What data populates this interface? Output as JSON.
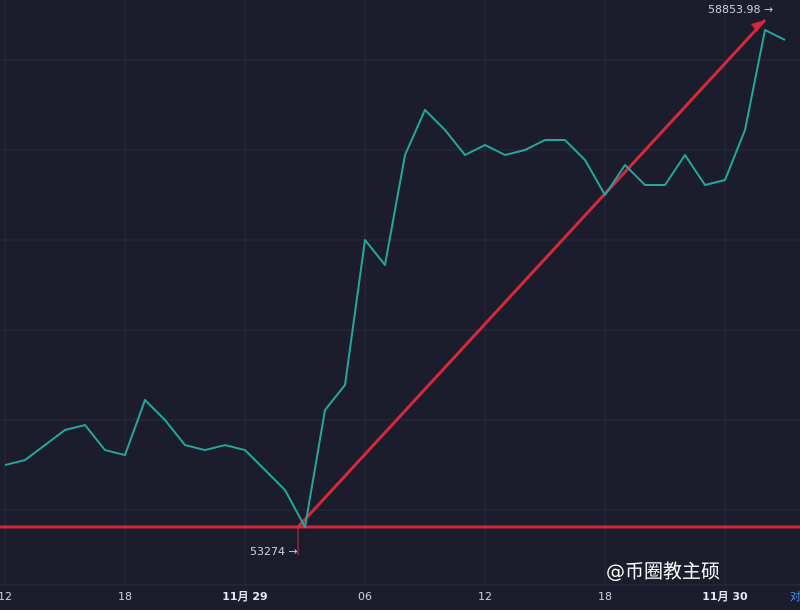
{
  "chart_data": {
    "type": "line",
    "categories": [
      "12",
      null,
      null,
      null,
      null,
      null,
      "18",
      null,
      null,
      null,
      null,
      null,
      "11月 29",
      null,
      null,
      null,
      null,
      null,
      "06",
      null,
      null,
      null,
      null,
      null,
      "12",
      null,
      null,
      null,
      null,
      null,
      "18",
      null,
      null,
      null,
      null,
      null,
      "11月 30",
      null,
      null,
      null
    ],
    "series": [
      {
        "color": "#26a69a",
        "values": [
          53956,
          54011,
          54176,
          54342,
          54397,
          54121,
          54066,
          54672,
          54452,
          54176,
          54121,
          54176,
          54121,
          53901,
          53681,
          53274,
          54562,
          54837,
          56433,
          56158,
          57368,
          57864,
          57643,
          57368,
          57478,
          57368,
          57423,
          57533,
          57533,
          57313,
          56928,
          57258,
          57038,
          57038,
          57368,
          57038,
          57093,
          57643,
          58744,
          58634
        ]
      }
    ],
    "ylim": [
      52636,
      59074
    ],
    "high_label": "58853.98 →",
    "low_label": "53274 →",
    "support_line": 53274,
    "trend_line": [
      53274,
      58853.98
    ],
    "line_color": "#d4293d",
    "watermark": "@币圈教主硕",
    "corner_label": "对"
  }
}
